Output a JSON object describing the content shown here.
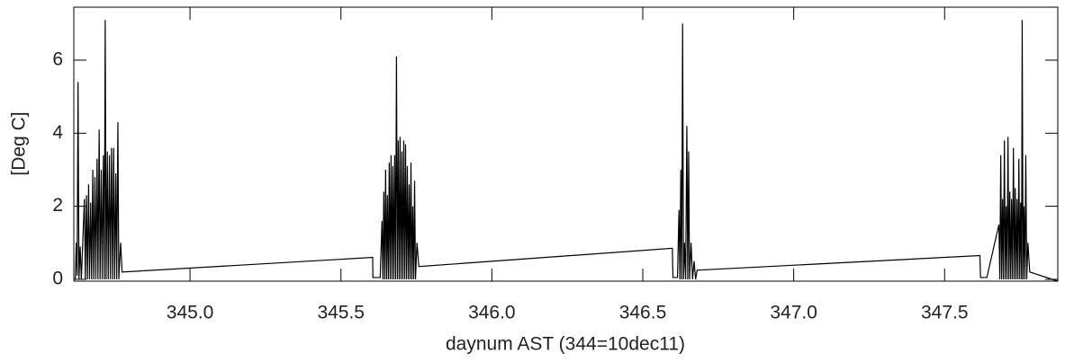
{
  "chart_data": {
    "type": "line",
    "xlabel": "daynum AST (344=10dec11)",
    "ylabel": "[Deg C]",
    "color": "#000000",
    "xlim": [
      344.615,
      347.875
    ],
    "ylim": [
      -0.05,
      7.45
    ],
    "xticks": [
      {
        "value": 345,
        "label": "345.0"
      },
      {
        "value": 345.5,
        "label": "345.5"
      },
      {
        "value": 346,
        "label": "346.0"
      },
      {
        "value": 346.5,
        "label": "346.5"
      },
      {
        "value": 347,
        "label": "347.0"
      },
      {
        "value": 347.5,
        "label": "347.5"
      }
    ],
    "yticks": [
      0,
      2,
      4,
      6
    ],
    "x": [
      344.62,
      344.623,
      344.626,
      344.629,
      344.632,
      344.636,
      344.64,
      344.65,
      344.653,
      344.657,
      344.66,
      344.664,
      344.667,
      344.671,
      344.674,
      344.678,
      344.681,
      344.685,
      344.688,
      344.692,
      344.695,
      344.699,
      344.702,
      344.706,
      344.709,
      344.713,
      344.716,
      344.719,
      344.722,
      344.726,
      344.729,
      344.733,
      344.736,
      344.74,
      344.743,
      344.747,
      344.75,
      344.754,
      344.757,
      344.761,
      344.764,
      344.77,
      344.775,
      345.605,
      345.606,
      345.63,
      345.636,
      345.639,
      345.642,
      345.645,
      345.648,
      345.651,
      345.654,
      345.657,
      345.66,
      345.663,
      345.666,
      345.669,
      345.672,
      345.675,
      345.678,
      345.681,
      345.684,
      345.687,
      345.69,
      345.693,
      345.696,
      345.699,
      345.702,
      345.705,
      345.708,
      345.711,
      345.714,
      345.717,
      345.72,
      345.723,
      345.726,
      345.729,
      345.732,
      345.735,
      345.738,
      345.741,
      345.744,
      345.747,
      345.752,
      345.758,
      346.598,
      346.6,
      346.615,
      346.62,
      346.623,
      346.626,
      346.629,
      346.632,
      346.635,
      346.638,
      346.642,
      346.646,
      346.649,
      346.652,
      346.655,
      346.66,
      346.665,
      346.67,
      346.675,
      346.68,
      347.617,
      347.619,
      347.64,
      347.68,
      347.683,
      347.686,
      347.689,
      347.692,
      347.695,
      347.698,
      347.701,
      347.704,
      347.707,
      347.71,
      347.713,
      347.716,
      347.719,
      347.722,
      347.725,
      347.728,
      347.731,
      347.734,
      347.737,
      347.74,
      347.743,
      347.746,
      347.749,
      347.752,
      347.755,
      347.757,
      347.76,
      347.763,
      347.766,
      347.769,
      347.772,
      347.776,
      347.782,
      347.875
    ],
    "values": [
      0.0,
      1.0,
      0.1,
      5.4,
      0.0,
      0.9,
      0.0,
      2.2,
      0.0,
      2.3,
      0.0,
      2.6,
      0.0,
      2.1,
      0.0,
      3.0,
      0.0,
      2.8,
      0.0,
      3.3,
      0.0,
      4.1,
      0.0,
      3.0,
      0.0,
      3.4,
      0.0,
      7.1,
      0.0,
      3.5,
      0.0,
      3.4,
      0.0,
      3.6,
      0.0,
      3.6,
      0.0,
      2.9,
      0.0,
      4.3,
      0.0,
      1.0,
      0.2,
      0.6,
      0.05,
      0.05,
      1.6,
      0.0,
      2.4,
      0.0,
      3.0,
      0.0,
      2.3,
      0.0,
      3.2,
      0.0,
      3.4,
      0.0,
      3.1,
      0.0,
      3.4,
      0.0,
      6.1,
      0.0,
      3.8,
      0.0,
      3.9,
      0.0,
      3.5,
      0.0,
      3.8,
      0.0,
      3.7,
      0.0,
      3.1,
      0.0,
      2.6,
      0.0,
      3.2,
      0.0,
      2.0,
      0.0,
      2.7,
      0.0,
      1.0,
      0.35,
      0.85,
      0.05,
      0.05,
      1.9,
      0.0,
      3.0,
      0.0,
      7.0,
      0.0,
      1.0,
      0.0,
      4.2,
      0.0,
      3.5,
      0.0,
      1.0,
      0.0,
      0.5,
      0.0,
      0.25,
      0.65,
      0.05,
      0.05,
      1.5,
      0.0,
      3.4,
      0.0,
      2.2,
      0.0,
      3.8,
      0.0,
      2.0,
      0.0,
      3.9,
      0.0,
      2.4,
      0.0,
      2.2,
      0.0,
      3.6,
      0.0,
      2.5,
      0.0,
      2.2,
      0.0,
      3.3,
      0.0,
      2.1,
      0.0,
      7.1,
      0.0,
      2.0,
      0.0,
      3.4,
      0.0,
      1.0,
      0.2,
      -0.05
    ]
  }
}
